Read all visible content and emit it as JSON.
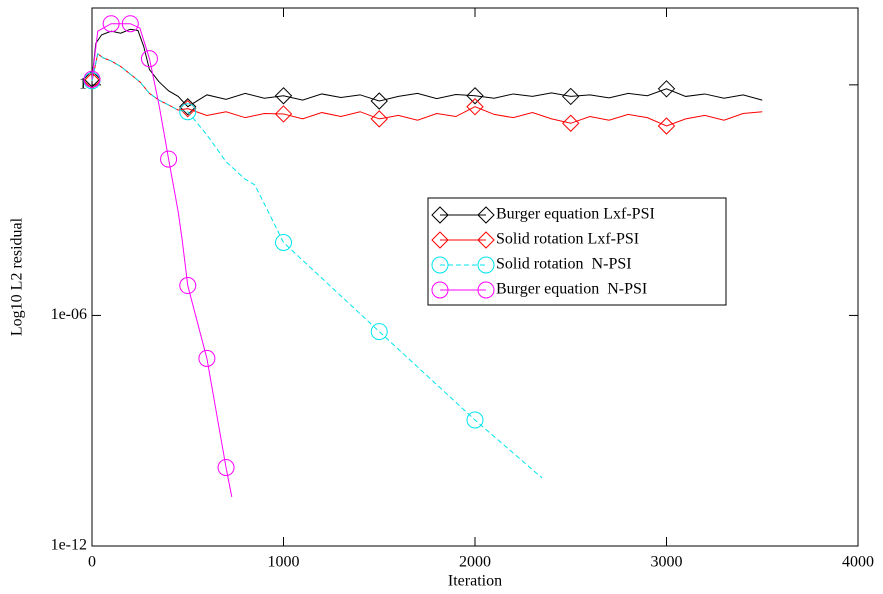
{
  "chart_data": {
    "type": "line",
    "x_label": "Iteration",
    "y_label": "Log10 L2 residual",
    "log_y": true,
    "xlim": [
      0,
      4000
    ],
    "ylim": [
      1e-12,
      100
    ],
    "xticks": [
      0,
      1000,
      2000,
      3000,
      4000
    ],
    "yticks": [
      {
        "value": 1e-12,
        "label": "1e-12"
      },
      {
        "value": 1e-06,
        "label": "1e-06"
      },
      1
    ],
    "series": [
      {
        "name": "Burger equation Lxf-PSI",
        "color": "#000000",
        "marker": "diamond",
        "dash": false,
        "x": [
          0,
          20,
          50,
          100,
          150,
          200,
          240,
          270,
          300,
          350,
          400,
          450,
          500,
          600,
          700,
          800,
          900,
          1000,
          1100,
          1200,
          1300,
          1400,
          1500,
          1600,
          1700,
          1800,
          1900,
          2000,
          2100,
          2200,
          2300,
          2400,
          2500,
          2600,
          2700,
          2800,
          2900,
          3000,
          3100,
          3200,
          3300,
          3400,
          3500
        ],
        "values": [
          1.43,
          12,
          20,
          25,
          22,
          28,
          26,
          10,
          2.5,
          1.2,
          0.7,
          0.5,
          0.27,
          0.55,
          0.42,
          0.6,
          0.45,
          0.52,
          0.4,
          0.58,
          0.47,
          0.55,
          0.38,
          0.5,
          0.6,
          0.44,
          0.56,
          0.52,
          0.45,
          0.58,
          0.5,
          0.62,
          0.5,
          0.55,
          0.46,
          0.6,
          0.52,
          0.79,
          0.5,
          0.58,
          0.45,
          0.55,
          0.4
        ],
        "markers": {
          "x": [
            0,
            500,
            1000,
            1500,
            2000,
            2500,
            3000
          ],
          "values": [
            1.43,
            0.27,
            0.52,
            0.38,
            0.52,
            0.5,
            0.79
          ]
        }
      },
      {
        "name": "Solid rotation Lxf-PSI",
        "color": "#ff0000",
        "marker": "diamond",
        "dash": false,
        "x": [
          0,
          30,
          60,
          100,
          150,
          200,
          250,
          300,
          350,
          400,
          450,
          500,
          600,
          700,
          800,
          900,
          1000,
          1100,
          1200,
          1300,
          1400,
          1500,
          1600,
          1700,
          1800,
          1900,
          2000,
          2100,
          2200,
          2300,
          2400,
          2500,
          2600,
          2700,
          2800,
          2900,
          3000,
          3100,
          3200,
          3300,
          3400,
          3500
        ],
        "values": [
          1.27,
          6.4,
          5,
          4.2,
          3,
          1.9,
          1.2,
          0.6,
          0.4,
          0.3,
          0.22,
          0.24,
          0.16,
          0.2,
          0.14,
          0.18,
          0.175,
          0.13,
          0.19,
          0.15,
          0.2,
          0.13,
          0.16,
          0.12,
          0.18,
          0.15,
          0.27,
          0.17,
          0.14,
          0.19,
          0.13,
          0.1,
          0.15,
          0.12,
          0.17,
          0.14,
          0.085,
          0.13,
          0.16,
          0.12,
          0.18,
          0.2
        ],
        "markers": {
          "x": [
            0,
            500,
            1000,
            1500,
            2000,
            2500,
            3000
          ],
          "values": [
            1.27,
            0.24,
            0.175,
            0.13,
            0.27,
            0.1,
            0.085
          ]
        }
      },
      {
        "name": "Solid rotation  N-PSI",
        "color": "#00e5ee",
        "marker": "circle",
        "dash": true,
        "x": [
          0,
          30,
          60,
          100,
          150,
          200,
          250,
          300,
          350,
          400,
          450,
          500,
          600,
          700,
          800,
          850,
          900,
          1000,
          1500,
          2000,
          2350
        ],
        "values": [
          1.27,
          6.4,
          5,
          4.2,
          3,
          1.9,
          1.2,
          0.6,
          0.4,
          0.3,
          0.22,
          0.2,
          0.05,
          0.01,
          0.0035,
          0.0025,
          0.0008,
          7.9e-05,
          3.8e-07,
          1.9e-09,
          5.9e-11
        ],
        "markers": {
          "x": [
            0,
            500,
            1000,
            1500,
            2000
          ],
          "values": [
            1.27,
            0.2,
            7.9e-05,
            3.8e-07,
            1.9e-09
          ]
        }
      },
      {
        "name": "Burger equation  N-PSI",
        "color": "#ff00ff",
        "marker": "circle",
        "dash": false,
        "x": [
          0,
          30,
          100,
          200,
          250,
          300,
          350,
          400,
          450,
          470,
          500,
          600,
          700,
          730
        ],
        "values": [
          1.4,
          25,
          39,
          39,
          30,
          4.8,
          0.3,
          0.0117,
          0.0005,
          0.0001,
          6e-06,
          7.6e-08,
          1.1e-10,
          1.9e-11
        ],
        "markers": {
          "x": [
            0,
            100,
            200,
            300,
            400,
            500,
            600,
            700
          ],
          "values": [
            1.4,
            39,
            39,
            4.8,
            0.0117,
            6e-06,
            7.6e-08,
            1.1e-10
          ]
        }
      }
    ]
  }
}
